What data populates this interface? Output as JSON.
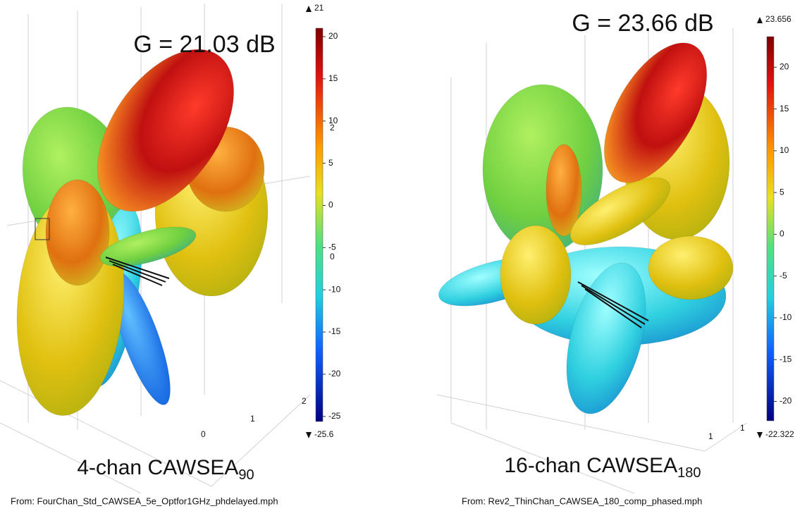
{
  "panels": [
    {
      "gain": "G = 21.03 dB",
      "colorbar": {
        "max": 21,
        "min": -25.6,
        "ticks": [
          20,
          15,
          10,
          5,
          0,
          -5,
          -10,
          -15,
          -20,
          -25
        ]
      },
      "axis_labels": [
        "2",
        "0",
        "2",
        "1",
        "0"
      ],
      "caption": {
        "text": "4-chan CAWSEA",
        "subscript": "90"
      },
      "source": "From: FourChan_Std_CAWSEA_5e_Optfor1GHz_phdelayed.mph"
    },
    {
      "gain": "G = 23.66 dB",
      "colorbar": {
        "max": 23.656,
        "min": -22.322,
        "ticks": [
          20,
          15,
          10,
          5,
          0,
          -5,
          -10,
          -15,
          -20
        ]
      },
      "axis_labels": [
        "1",
        "1"
      ],
      "caption": {
        "text": "16-chan CAWSEA",
        "subscript": "180"
      },
      "source": "From: Rev2_ThinChan_CAWSEA_180_comp_phased.mph"
    }
  ]
}
